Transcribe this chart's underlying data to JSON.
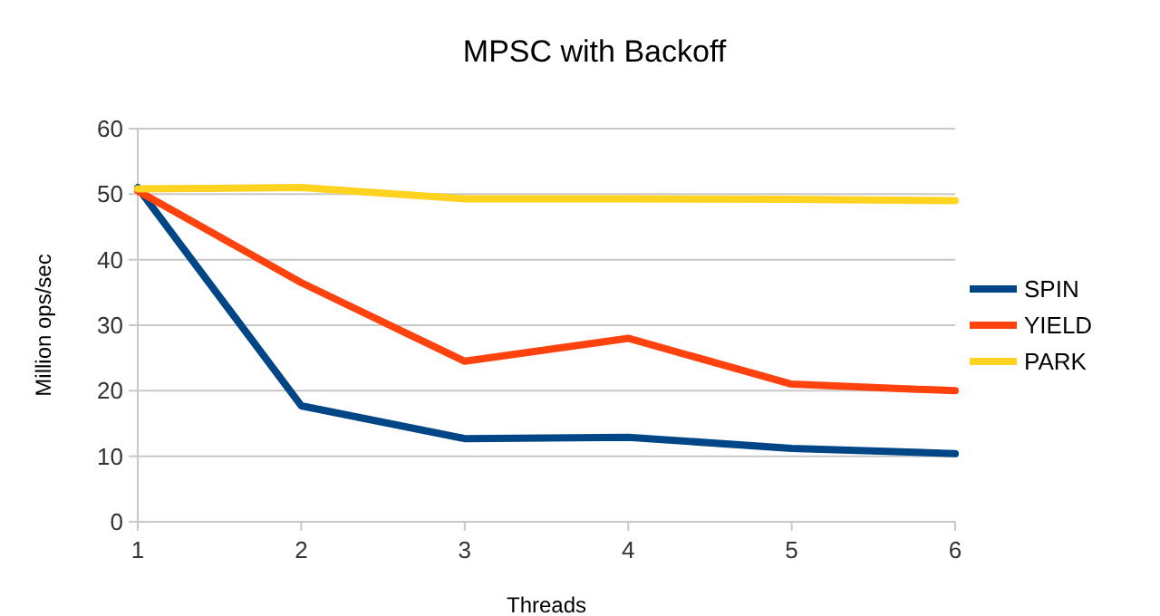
{
  "chart_data": {
    "type": "line",
    "title": "MPSC with Backoff",
    "xlabel": "Threads",
    "ylabel": "Million ops/sec",
    "x": [
      1,
      2,
      3,
      4,
      5,
      6
    ],
    "xlim": [
      1,
      6
    ],
    "xticks": [
      1,
      2,
      3,
      4,
      5,
      6
    ],
    "ylim": [
      0,
      60
    ],
    "yticks": [
      0,
      10,
      20,
      30,
      40,
      50,
      60
    ],
    "grid": "y",
    "legend": "right",
    "marker": "none",
    "line_style": "solid",
    "series": [
      {
        "name": "SPIN",
        "color": "#004586",
        "values": [
          51,
          17.7,
          12.7,
          12.9,
          11.2,
          10.4
        ]
      },
      {
        "name": "YIELD",
        "color": "#ff420e",
        "values": [
          50.5,
          36.5,
          24.5,
          28,
          21,
          20
        ]
      },
      {
        "name": "PARK",
        "color": "#ffd320",
        "values": [
          50.8,
          51,
          49.3,
          49.3,
          49.2,
          49
        ]
      }
    ]
  }
}
